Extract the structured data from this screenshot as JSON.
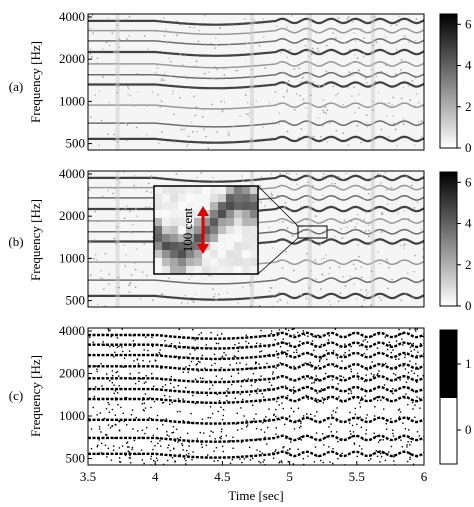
{
  "chart_data": [
    {
      "type": "heatmap",
      "panel_label": "(a)",
      "ylabel": "Frequency [Hz]",
      "y_scale": "log",
      "y_ticks": [
        4000,
        2000,
        1000,
        500
      ],
      "y_tick_labels": [
        "4000",
        "2000",
        "1000",
        "500"
      ],
      "x_range": [
        3.5,
        6
      ],
      "y_range": [
        450,
        4200
      ],
      "colorbar_ticks": [
        "6",
        "4",
        "2",
        "0"
      ],
      "colorbar_range": [
        0,
        6.5
      ],
      "colormap": "white-to-black"
    },
    {
      "type": "heatmap",
      "panel_label": "(b)",
      "ylabel": "Frequency [Hz]",
      "y_scale": "log",
      "y_ticks": [
        4000,
        2000,
        1000,
        500
      ],
      "y_tick_labels": [
        "4000",
        "2000",
        "1000",
        "500"
      ],
      "x_range": [
        3.5,
        6
      ],
      "y_range": [
        450,
        4200
      ],
      "colorbar_ticks": [
        "6",
        "4",
        "2",
        "0"
      ],
      "colorbar_range": [
        0,
        6.5
      ],
      "colormap": "white-to-black",
      "annotation": "100 cent",
      "zoom_region": {
        "x": [
          5.05,
          5.28
        ],
        "y": [
          1620,
          1850
        ]
      }
    },
    {
      "type": "heatmap",
      "panel_label": "(c)",
      "ylabel": "Frequency [Hz]",
      "y_scale": "log",
      "y_ticks": [
        4000,
        2000,
        1000,
        500
      ],
      "y_tick_labels": [
        "4000",
        "2000",
        "1000",
        "500"
      ],
      "x_range": [
        3.5,
        6
      ],
      "y_range": [
        450,
        4200
      ],
      "x_ticks": [
        3.5,
        4,
        4.5,
        5,
        5.5,
        6
      ],
      "x_tick_labels": [
        "3.5",
        "4",
        "4.5",
        "5",
        "5.5",
        "6"
      ],
      "xlabel": "Time [sec]",
      "colorbar_ticks": [
        "1",
        "0"
      ],
      "colorbar_range": [
        0,
        1.4
      ],
      "colormap": "binary"
    }
  ]
}
